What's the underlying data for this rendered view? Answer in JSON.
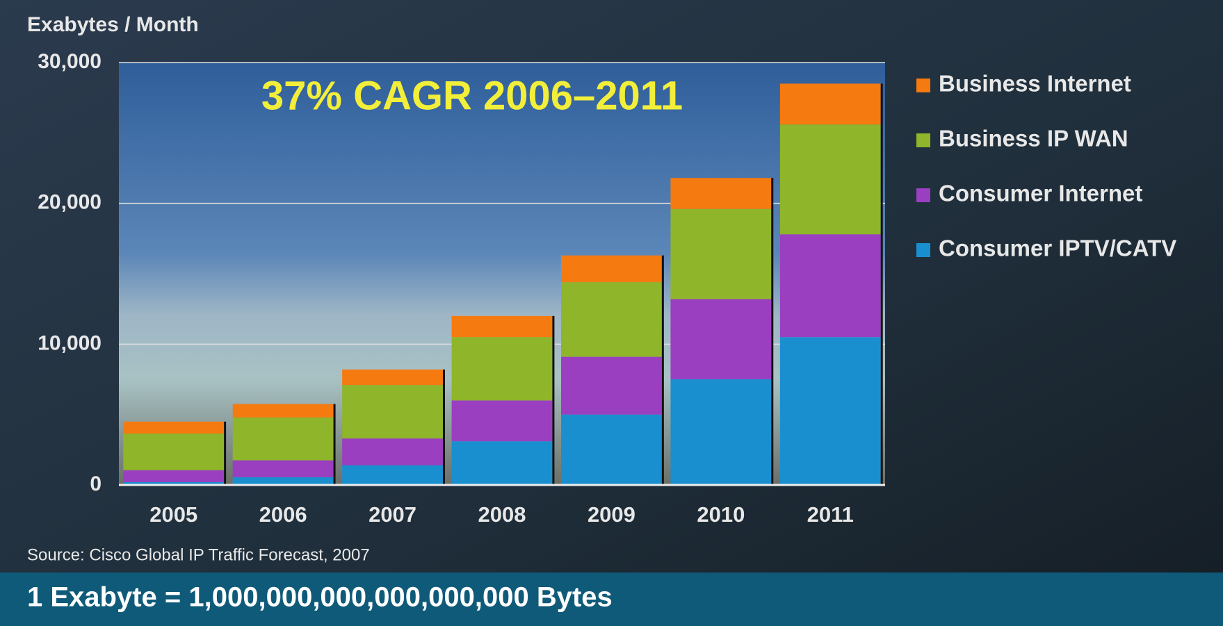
{
  "chart_data": {
    "type": "stacked-bar",
    "y_label": "Exabytes / Month",
    "annotation": "37% CAGR 2006–2011",
    "categories": [
      "2005",
      "2006",
      "2007",
      "2008",
      "2009",
      "2010",
      "2011"
    ],
    "series": [
      {
        "name": "Consumer IPTV/CATV",
        "color": "#1a8fcf",
        "values": [
          200,
          550,
          1400,
          3100,
          5000,
          7500,
          10500
        ]
      },
      {
        "name": "Consumer Internet",
        "color": "#9a3fc0",
        "values": [
          850,
          1200,
          1900,
          2900,
          4100,
          5700,
          7300
        ]
      },
      {
        "name": "Business IP WAN",
        "color": "#8fb52a",
        "values": [
          2600,
          3050,
          3800,
          4500,
          5300,
          6400,
          7800
        ]
      },
      {
        "name": "Business Internet",
        "color": "#f57a10",
        "values": [
          850,
          950,
          1100,
          1500,
          1900,
          2200,
          2900
        ]
      }
    ],
    "ylim": [
      0,
      30000
    ],
    "yticks": [
      0,
      {
        "value": 10000,
        "label": "10,000"
      },
      {
        "value": 20000,
        "label": "20,000"
      },
      {
        "value": 30000,
        "label": "30,000"
      }
    ],
    "grid": true,
    "source": "Source: Cisco Global IP Traffic Forecast, 2007",
    "footer": "1 Exabyte = 1,000,000,000,000,000,000 Bytes"
  }
}
